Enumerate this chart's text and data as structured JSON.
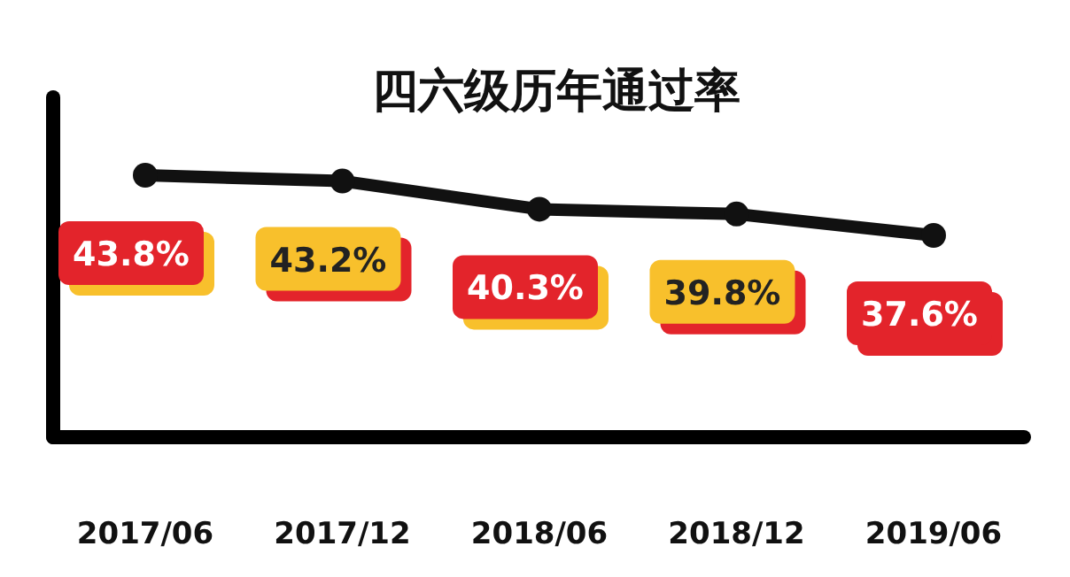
{
  "chart_data": {
    "type": "line",
    "title": "四六级历年通过率",
    "categories": [
      "2017/06",
      "2017/12",
      "2018/06",
      "2018/12",
      "2019/06"
    ],
    "series": [
      {
        "color": "#111111",
        "values": [
          43.8,
          43.2,
          40.3,
          39.8,
          37.6
        ],
        "value_labels": [
          "43.8%",
          "43.2%",
          "40.3%",
          "39.8%",
          "37.6%"
        ],
        "colors": [
          "#e3242b",
          "#f8c02c",
          "#e3242b",
          "#f8c02c",
          "#e3242b"
        ]
      }
    ],
    "marker": "circle",
    "line_style": "solid"
  }
}
